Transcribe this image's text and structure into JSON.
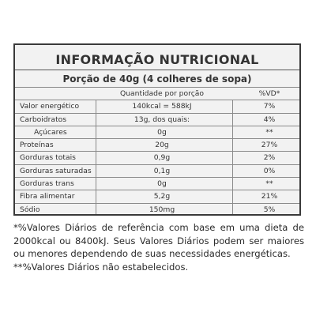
{
  "label": {
    "title": "INFORMAÇÃO NUTRICIONAL",
    "serving": "Porção de 40g (4 colheres de sopa)",
    "header": {
      "quantity": "Quantidade por porção",
      "vd": "%VD*"
    },
    "rows": [
      {
        "name": "Valor energético",
        "quantity": "140kcal = 588kJ",
        "vd": "7%"
      },
      {
        "name": "Carboidratos",
        "quantity": "13g, dos quais:",
        "vd": "4%"
      },
      {
        "name": "Açúcares",
        "quantity": "0g",
        "vd": "**"
      },
      {
        "name": "Proteínas",
        "quantity": "20g",
        "vd": "27%"
      },
      {
        "name": "Gorduras totais",
        "quantity": "0,9g",
        "vd": "2%"
      },
      {
        "name": "Gorduras saturadas",
        "quantity": "0,1g",
        "vd": "0%"
      },
      {
        "name": "Gorduras trans",
        "quantity": "0g",
        "vd": "**"
      },
      {
        "name": "Fibra alimentar",
        "quantity": "5,2g",
        "vd": "21%"
      },
      {
        "name": "Sódio",
        "quantity": "150mg",
        "vd": "5%"
      }
    ]
  },
  "footnotes": {
    "note1": "*%Valores Diários de referência com base em uma dieta de 2000kcal ou 8400kJ. Seus Valores Diários podem ser maiores ou menores dependendo de suas necessidades energéticas.",
    "note2": "**%Valores Diários não estabelecidos."
  }
}
